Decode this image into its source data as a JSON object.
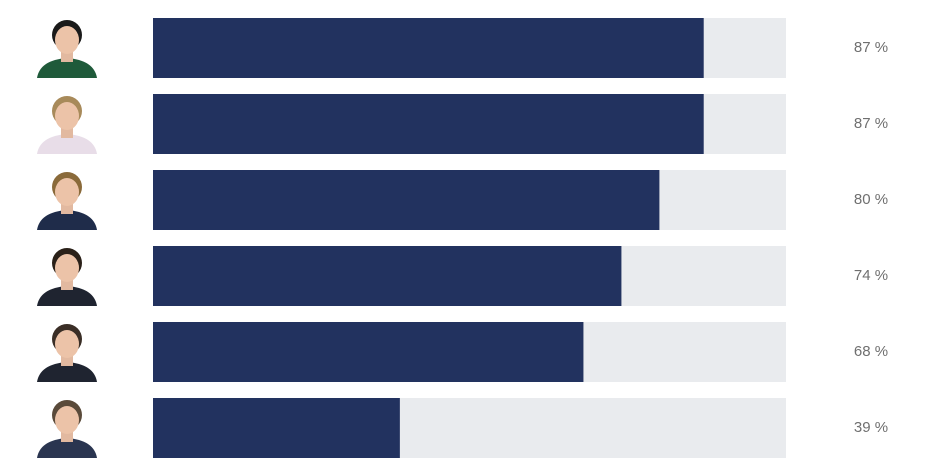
{
  "chart_data": {
    "type": "bar",
    "categories": [
      null,
      null,
      null,
      null,
      null,
      null
    ],
    "values": [
      87,
      87,
      80,
      74,
      68,
      39
    ],
    "value_labels": [
      "87 %",
      "87 %",
      "80 %",
      "74 %",
      "68 %",
      "39 %"
    ],
    "color": "#22325f",
    "xlim": [
      0,
      100
    ]
  }
}
